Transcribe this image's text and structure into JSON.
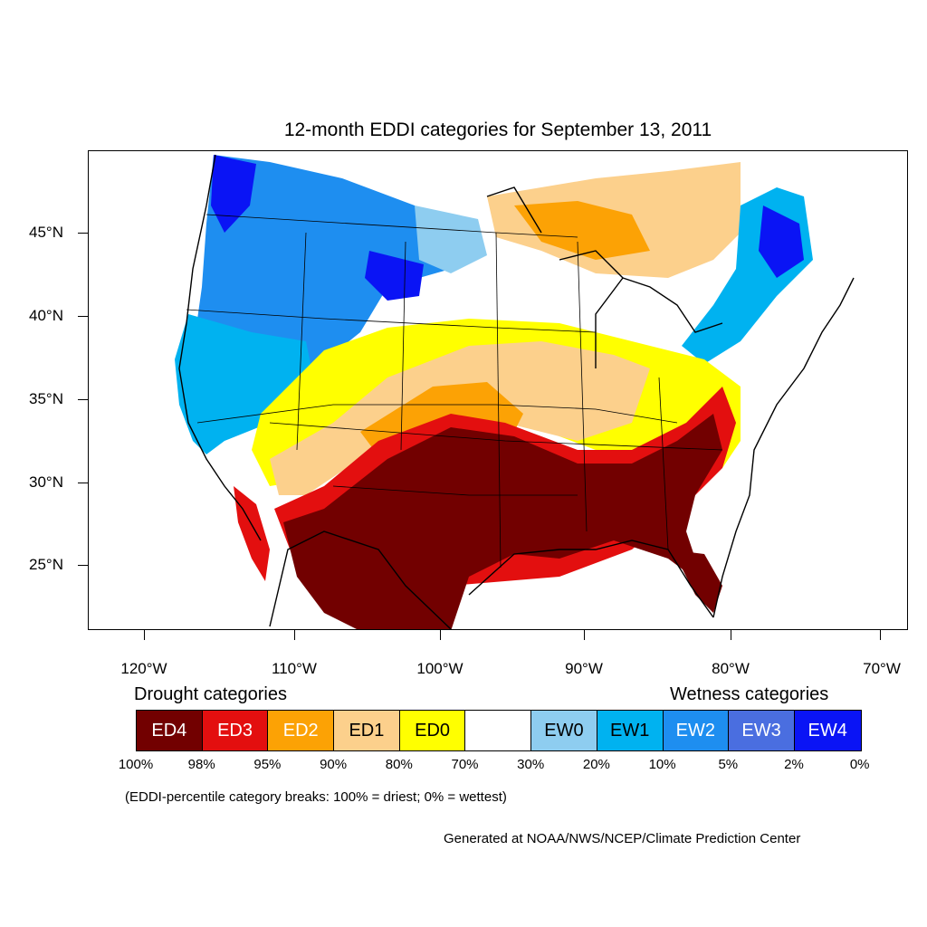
{
  "title": "12-month EDDI categories for September 13, 2011",
  "lat_labels": [
    "45°N",
    "40°N",
    "35°N",
    "30°N",
    "25°N"
  ],
  "lon_labels": [
    "120°W",
    "110°W",
    "100°W",
    "90°W",
    "80°W",
    "70°W"
  ],
  "legend": {
    "drought_heading": "Drought categories",
    "wetness_heading": "Wetness categories",
    "categories": [
      {
        "label": "ED4",
        "color": "#720000",
        "text_color": "#ffffff"
      },
      {
        "label": "ED3",
        "color": "#e30f0f",
        "text_color": "#ffffff"
      },
      {
        "label": "ED2",
        "color": "#fca205",
        "text_color": "#ffffff"
      },
      {
        "label": "ED1",
        "color": "#fcd08c",
        "text_color": "#000000"
      },
      {
        "label": "ED0",
        "color": "#ffff00",
        "text_color": "#000000"
      },
      {
        "label": "",
        "color": "#ffffff",
        "text_color": "#000000"
      },
      {
        "label": "EW0",
        "color": "#8ecdf0",
        "text_color": "#000000"
      },
      {
        "label": "EW1",
        "color": "#00b2f0",
        "text_color": "#000000"
      },
      {
        "label": "EW2",
        "color": "#1e8ef0",
        "text_color": "#ffffff"
      },
      {
        "label": "EW3",
        "color": "#4a6ee0",
        "text_color": "#ffffff"
      },
      {
        "label": "EW4",
        "color": "#0a14f5",
        "text_color": "#ffffff"
      }
    ],
    "percent_breaks": [
      "100%",
      "98%",
      "95%",
      "90%",
      "80%",
      "70%",
      "30%",
      "20%",
      "10%",
      "5%",
      "2%",
      "0%"
    ]
  },
  "note": "(EDDI-percentile category breaks: 100% = driest; 0% = wettest)",
  "credit": "Generated at NOAA/NWS/NCEP/Climate Prediction Center"
}
